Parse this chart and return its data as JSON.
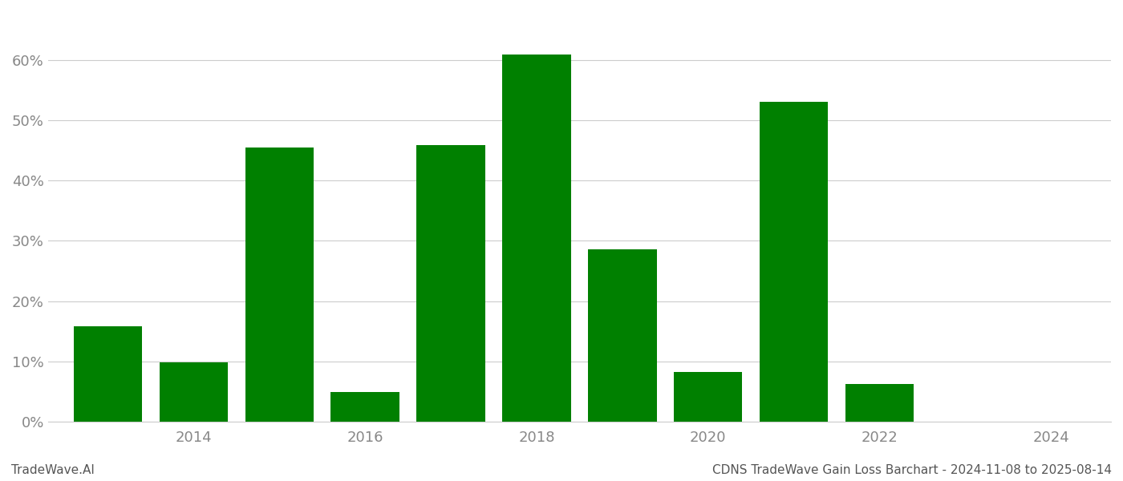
{
  "years": [
    2013,
    2014,
    2015,
    2016,
    2017,
    2018,
    2019,
    2020,
    2021,
    2022,
    2023
  ],
  "values": [
    0.158,
    0.099,
    0.455,
    0.049,
    0.459,
    0.61,
    0.286,
    0.082,
    0.531,
    0.062,
    0.0
  ],
  "bar_color": "#008000",
  "background_color": "#ffffff",
  "grid_color": "#cccccc",
  "tick_label_color": "#888888",
  "ylim": [
    0,
    0.68
  ],
  "yticks": [
    0.0,
    0.1,
    0.2,
    0.3,
    0.4,
    0.5,
    0.6
  ],
  "xticks": [
    2014,
    2016,
    2018,
    2020,
    2022,
    2024
  ],
  "bottom_left_text": "TradeWave.AI",
  "bottom_right_text": "CDNS TradeWave Gain Loss Barchart - 2024-11-08 to 2025-08-14",
  "bottom_text_color": "#555555",
  "bar_width": 0.8,
  "xlim_left": 2012.3,
  "xlim_right": 2024.7
}
